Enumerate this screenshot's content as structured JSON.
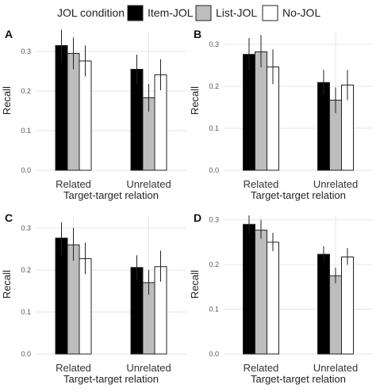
{
  "legend": {
    "title": "JOL condition",
    "entries": [
      {
        "label": "Item-JOL",
        "color": "#000000"
      },
      {
        "label": "List-JOL",
        "color": "#bdbdbd"
      },
      {
        "label": "No-JOL",
        "color": "#ffffff"
      }
    ]
  },
  "chart_data": [
    {
      "type": "bar",
      "panel": "A",
      "categories": [
        "Related",
        "Unrelated"
      ],
      "xlabel": "Target-target relation",
      "ylabel": "Recall",
      "ylim": [
        0,
        0.35
      ],
      "yticks": [
        "0.0",
        "0.1",
        "0.2",
        "0.3"
      ],
      "grid": true,
      "series": [
        {
          "name": "Item-JOL",
          "values": [
            0.315,
            0.255
          ],
          "error_low": [
            0.275,
            0.218
          ],
          "error_high": [
            0.355,
            0.292
          ]
        },
        {
          "name": "List-JOL",
          "values": [
            0.295,
            0.183
          ],
          "error_low": [
            0.255,
            0.148
          ],
          "error_high": [
            0.335,
            0.218
          ]
        },
        {
          "name": "No-JOL",
          "values": [
            0.276,
            0.241
          ],
          "error_low": [
            0.237,
            0.202
          ],
          "error_high": [
            0.315,
            0.28
          ]
        }
      ]
    },
    {
      "type": "bar",
      "panel": "B",
      "categories": [
        "Related",
        "Unrelated"
      ],
      "xlabel": "Target-target relation",
      "ylabel": "Recall",
      "ylim": [
        0,
        0.33
      ],
      "yticks": [
        "0.0",
        "0.1",
        "0.2",
        "0.3"
      ],
      "grid": true,
      "series": [
        {
          "name": "Item-JOL",
          "values": [
            0.276,
            0.209
          ],
          "error_low": [
            0.237,
            0.179
          ],
          "error_high": [
            0.315,
            0.239
          ]
        },
        {
          "name": "List-JOL",
          "values": [
            0.282,
            0.167
          ],
          "error_low": [
            0.245,
            0.136
          ],
          "error_high": [
            0.322,
            0.197
          ]
        },
        {
          "name": "No-JOL",
          "values": [
            0.246,
            0.203
          ],
          "error_low": [
            0.205,
            0.167
          ],
          "error_high": [
            0.288,
            0.239
          ]
        }
      ]
    },
    {
      "type": "bar",
      "panel": "C",
      "categories": [
        "Related",
        "Unrelated"
      ],
      "xlabel": "Target-target relation",
      "ylabel": "Recall",
      "ylim": [
        0,
        0.33
      ],
      "yticks": [
        "0.0",
        "0.1",
        "0.2",
        "0.3"
      ],
      "grid": true,
      "series": [
        {
          "name": "Item-JOL",
          "values": [
            0.276,
            0.206
          ],
          "error_low": [
            0.238,
            0.177
          ],
          "error_high": [
            0.314,
            0.235
          ]
        },
        {
          "name": "List-JOL",
          "values": [
            0.26,
            0.17
          ],
          "error_low": [
            0.222,
            0.141
          ],
          "error_high": [
            0.3,
            0.2
          ]
        },
        {
          "name": "No-JOL",
          "values": [
            0.227,
            0.208
          ],
          "error_low": [
            0.19,
            0.172
          ],
          "error_high": [
            0.265,
            0.246
          ]
        }
      ]
    },
    {
      "type": "bar",
      "panel": "D",
      "categories": [
        "Related",
        "Unrelated"
      ],
      "xlabel": "Target-target relation",
      "ylabel": "Recall",
      "ylim": [
        0,
        0.31
      ],
      "yticks": [
        "0.0",
        "0.1",
        "0.2",
        "0.3"
      ],
      "grid": true,
      "series": [
        {
          "name": "Item-JOL",
          "values": [
            0.29,
            0.223
          ],
          "error_low": [
            0.27,
            0.207
          ],
          "error_high": [
            0.31,
            0.241
          ]
        },
        {
          "name": "List-JOL",
          "values": [
            0.277,
            0.175
          ],
          "error_low": [
            0.258,
            0.158
          ],
          "error_high": [
            0.3,
            0.193
          ]
        },
        {
          "name": "No-JOL",
          "values": [
            0.25,
            0.217
          ],
          "error_low": [
            0.23,
            0.199
          ],
          "error_high": [
            0.271,
            0.237
          ]
        }
      ]
    }
  ]
}
